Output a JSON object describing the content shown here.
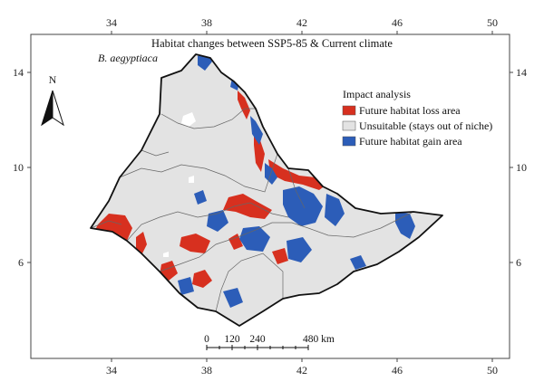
{
  "map": {
    "title": "Habitat changes between SSP5-85 & Current climate",
    "species": "B. aegyptiaca",
    "north_label": "N",
    "longitude_ticks": [
      "34",
      "38",
      "42",
      "46",
      "50"
    ],
    "latitude_ticks": [
      "14",
      "10",
      "6"
    ],
    "legend": {
      "title": "Impact analysis",
      "items": [
        {
          "label": "Future habitat loss area",
          "color": "#d7301f"
        },
        {
          "label": "Unsuitable (stays out of niche)",
          "color": "#e3e3e3"
        },
        {
          "label": "Future habitat gain area",
          "color": "#2c5db8"
        }
      ]
    },
    "scale_bar": {
      "labels": [
        "0",
        "120",
        "240",
        "480 km"
      ]
    }
  }
}
